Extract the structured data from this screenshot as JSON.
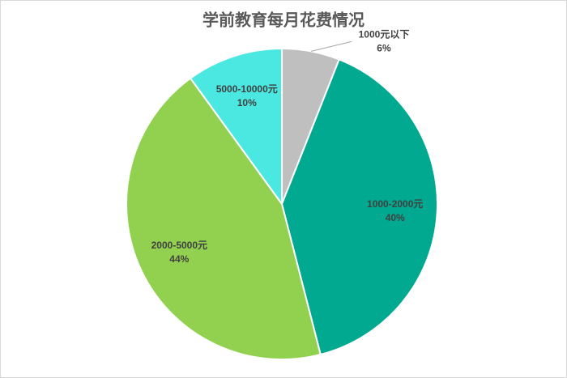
{
  "chart_data": {
    "type": "pie",
    "title": "学前教育每月花费情况",
    "categories": [
      "1000元以下",
      "1000-2000元",
      "2000-5000元",
      "5000-10000元"
    ],
    "values": [
      6,
      40,
      44,
      10
    ],
    "value_labels": [
      "6%",
      "40%",
      "44%",
      "10%"
    ],
    "colors": [
      "#bfbfbf",
      "#00a98f",
      "#92d050",
      "#4ae8e0"
    ]
  }
}
